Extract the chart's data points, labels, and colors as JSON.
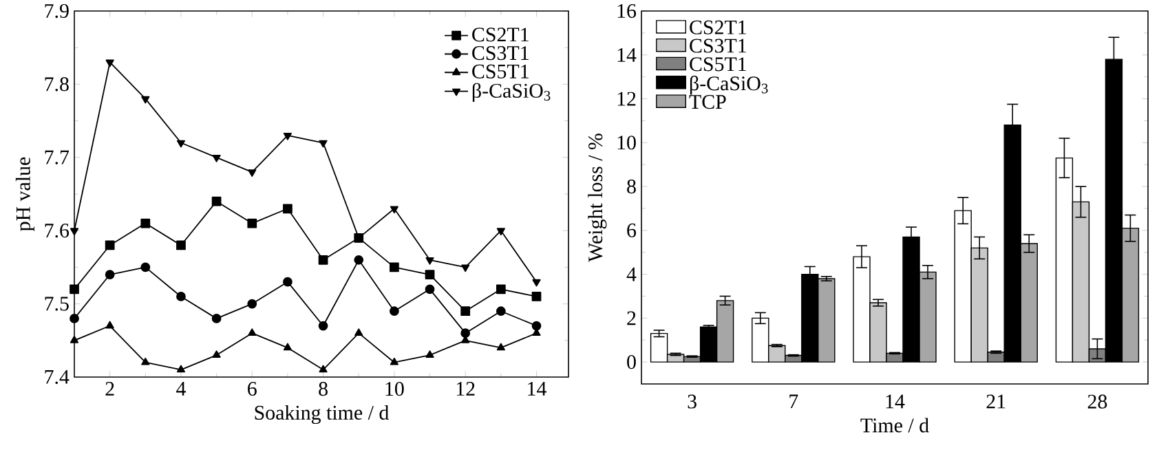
{
  "chart_data": [
    {
      "type": "line",
      "xlabel": "Soaking time / d",
      "ylabel": "pH value",
      "x": [
        1,
        2,
        3,
        4,
        5,
        6,
        7,
        8,
        9,
        10,
        11,
        12,
        13,
        14
      ],
      "xlim": [
        1,
        14.9
      ],
      "xticks": [
        2,
        4,
        6,
        8,
        10,
        12,
        14
      ],
      "ylim": [
        7.4,
        7.9
      ],
      "yticks": [
        7.4,
        7.5,
        7.6,
        7.7,
        7.8,
        7.9
      ],
      "legend": "top right",
      "line_style": "solid",
      "series": [
        {
          "name": "CS2T1",
          "color": "#000000",
          "marker": "square",
          "values": [
            7.52,
            7.58,
            7.61,
            7.58,
            7.64,
            7.61,
            7.63,
            7.56,
            7.59,
            7.55,
            7.54,
            7.49,
            7.52,
            7.51
          ]
        },
        {
          "name": "CS3T1",
          "color": "#000000",
          "marker": "circle",
          "values": [
            7.48,
            7.54,
            7.55,
            7.51,
            7.48,
            7.5,
            7.53,
            7.47,
            7.56,
            7.49,
            7.52,
            7.46,
            7.49,
            7.47
          ]
        },
        {
          "name": "CS5T1",
          "color": "#000000",
          "marker": "triangle",
          "values": [
            7.45,
            7.47,
            7.42,
            7.41,
            7.43,
            7.46,
            7.44,
            7.41,
            7.46,
            7.42,
            7.43,
            7.45,
            7.44,
            7.46
          ]
        },
        {
          "name": "β-CaSiO$_{3}$",
          "color": "#000000",
          "marker": "triangle_down",
          "values": [
            7.6,
            7.83,
            7.78,
            7.72,
            7.7,
            7.68,
            7.73,
            7.72,
            7.59,
            7.63,
            7.56,
            7.55,
            7.6,
            7.53
          ]
        }
      ]
    },
    {
      "type": "bar",
      "xlabel": "Time / d",
      "ylabel": "Weight loss / %",
      "categories": [
        "3",
        "7",
        "14",
        "21",
        "28"
      ],
      "ylim": [
        -1,
        16
      ],
      "yticks": [
        0,
        2,
        4,
        6,
        8,
        10,
        12,
        14,
        16
      ],
      "legend": "top left",
      "series": [
        {
          "name": "CS2T1",
          "color": "#ffffff",
          "values": [
            1.3,
            2.0,
            4.8,
            6.9,
            9.3
          ],
          "errors": [
            0.15,
            0.25,
            0.5,
            0.6,
            0.9
          ]
        },
        {
          "name": "CS3T1",
          "color": "#c8c8c8",
          "values": [
            0.35,
            0.75,
            2.7,
            5.2,
            7.3
          ],
          "errors": [
            0.05,
            0.05,
            0.15,
            0.5,
            0.7
          ]
        },
        {
          "name": "CS5T1",
          "color": "#808080",
          "values": [
            0.25,
            0.3,
            0.4,
            0.45,
            0.6
          ],
          "errors": [
            0.03,
            0.03,
            0.03,
            0.05,
            0.45
          ]
        },
        {
          "name": "β-CaSiO$_{3}$",
          "color": "#000000",
          "values": [
            1.6,
            4.0,
            5.7,
            10.8,
            13.8
          ],
          "errors": [
            0.07,
            0.35,
            0.45,
            0.95,
            1.0
          ]
        },
        {
          "name": "TCP",
          "color": "#a6a6a6",
          "values": [
            2.8,
            3.8,
            4.1,
            5.4,
            6.1
          ],
          "errors": [
            0.2,
            0.1,
            0.3,
            0.4,
            0.6
          ]
        }
      ]
    }
  ]
}
